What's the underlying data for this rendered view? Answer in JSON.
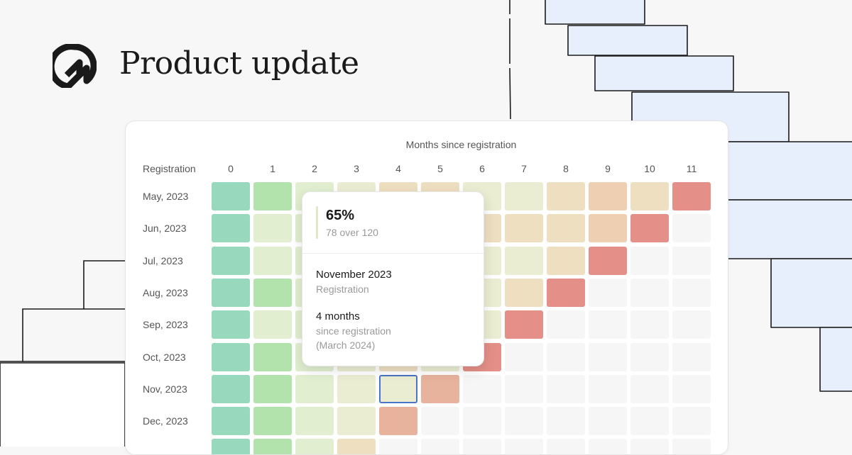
{
  "headline": "Product update",
  "icons": {
    "logo": "brand-logo-icon"
  },
  "chart_data": {
    "type": "heatmap",
    "title": "Months since registration",
    "row_header": "Registration",
    "columns": [
      "0",
      "1",
      "2",
      "3",
      "4",
      "5",
      "6",
      "7",
      "8",
      "9",
      "10",
      "11"
    ],
    "rows": [
      "May, 2023",
      "Jun, 2023",
      "Jul, 2023",
      "Aug, 2023",
      "Sep, 2023",
      "Oct, 2023",
      "Nov, 2023",
      "Dec, 2023"
    ],
    "colors": {
      "teal": "#98d9bd",
      "green": "#b3e3ad",
      "lightgreen": "#e1efd0",
      "cream": "#ebedd2",
      "sand": "#eedfc1",
      "tan": "#eecfb1",
      "salmon": "#e7b39c",
      "red": "#e49088",
      "empty": "#f6f6f6"
    },
    "cells": [
      [
        "teal",
        "green",
        "lightgreen",
        "cream",
        "sand",
        "sand",
        "cream",
        "cream",
        "sand",
        "tan",
        "sand",
        "red"
      ],
      [
        "teal",
        "lightgreen",
        "lightgreen",
        "cream",
        "sand",
        "sand",
        "sand",
        "sand",
        "sand",
        "tan",
        "red",
        "empty"
      ],
      [
        "teal",
        "lightgreen",
        "lightgreen",
        "cream",
        "sand",
        "sand",
        "cream",
        "cream",
        "sand",
        "red",
        "empty",
        "empty"
      ],
      [
        "teal",
        "green",
        "lightgreen",
        "cream",
        "sand",
        "cream",
        "cream",
        "sand",
        "red",
        "empty",
        "empty",
        "empty"
      ],
      [
        "teal",
        "lightgreen",
        "lightgreen",
        "cream",
        "sand",
        "cream",
        "cream",
        "red",
        "empty",
        "empty",
        "empty",
        "empty"
      ],
      [
        "teal",
        "green",
        "lightgreen",
        "cream",
        "sand",
        "cream",
        "red",
        "empty",
        "empty",
        "empty",
        "empty",
        "empty"
      ],
      [
        "teal",
        "green",
        "lightgreen",
        "cream",
        "cream",
        "salmon",
        "empty",
        "empty",
        "empty",
        "empty",
        "empty",
        "empty"
      ],
      [
        "teal",
        "green",
        "lightgreen",
        "cream",
        "salmon",
        "empty",
        "empty",
        "empty",
        "empty",
        "empty",
        "empty",
        "empty"
      ]
    ],
    "selected_cell": {
      "row": 6,
      "col": 4
    }
  },
  "tooltip": {
    "value": "65%",
    "detail": "78 over 120",
    "registration_value": "November 2023",
    "registration_label": "Registration",
    "months_value": "4 months",
    "months_label": "since registration",
    "months_date": "(March 2024)"
  }
}
